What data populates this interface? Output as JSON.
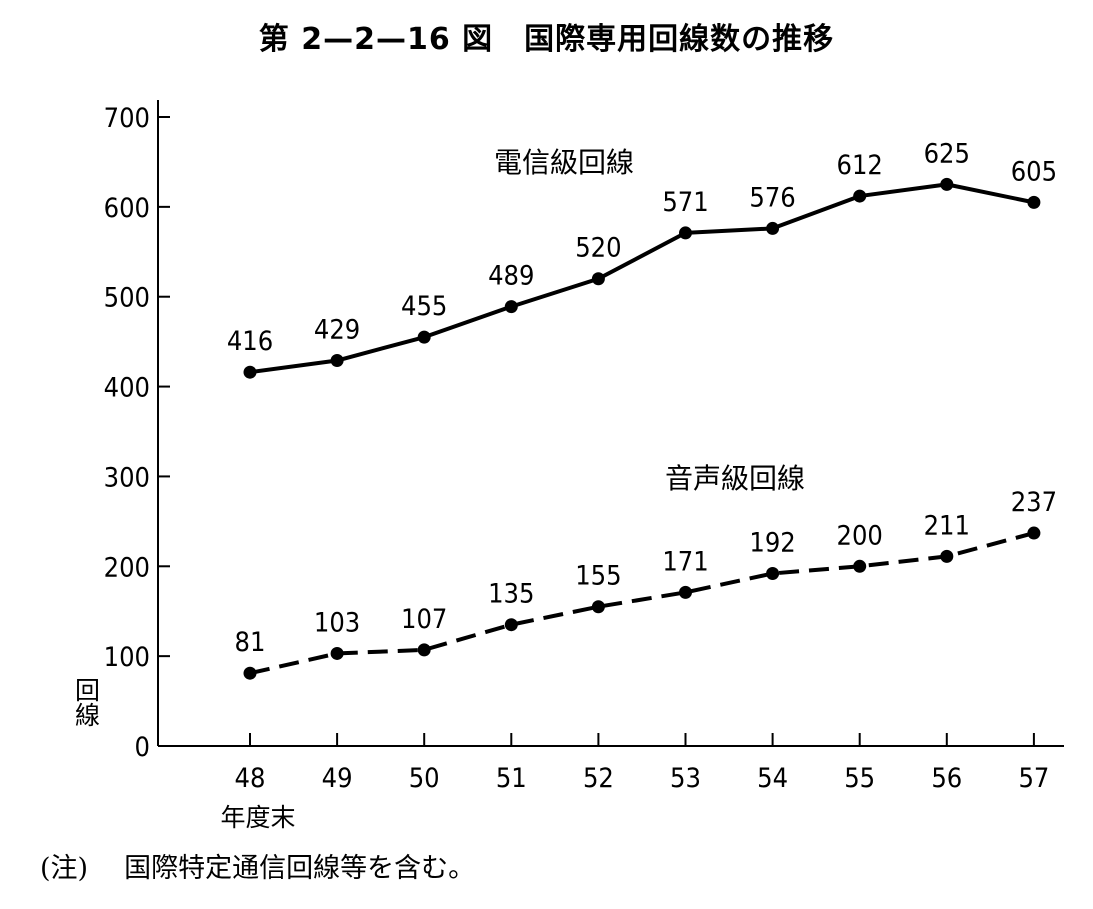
{
  "chart_data": {
    "type": "line",
    "title": "第 2—2—16 図　国際専用回線数の推移",
    "categories": [
      "48",
      "49",
      "50",
      "51",
      "52",
      "53",
      "54",
      "55",
      "56",
      "57"
    ],
    "x_suffix_label": "年度末",
    "ylabel": "回線",
    "ylim": [
      0,
      700
    ],
    "y_ticks": [
      0,
      100,
      200,
      300,
      400,
      500,
      600,
      700
    ],
    "grid": false,
    "legend": "inline labels",
    "series": [
      {
        "name": "電信級回線",
        "values": [
          416,
          429,
          455,
          489,
          520,
          571,
          576,
          612,
          625,
          605
        ],
        "line_style": "solid",
        "color": "#000000"
      },
      {
        "name": "音声級回線",
        "values": [
          81,
          103,
          107,
          135,
          155,
          171,
          192,
          200,
          211,
          237
        ],
        "line_style": "dashed",
        "color": "#000000"
      }
    ],
    "note": {
      "mark": "(注)",
      "text": "国際特定通信回線等を含む。"
    }
  }
}
